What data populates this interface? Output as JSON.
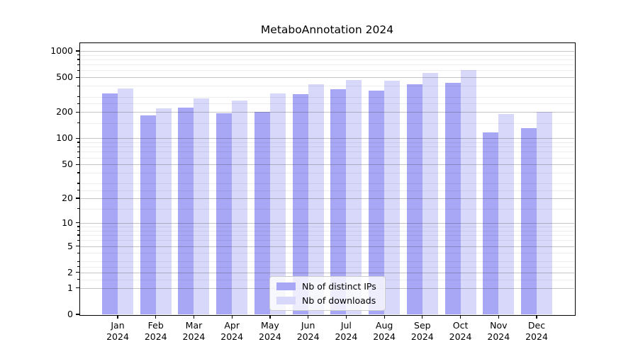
{
  "title": "MetaboAnnotation 2024",
  "colors": {
    "distinct_ips": "#a7a7f5",
    "downloads": "#d8d8fa",
    "grid_major": "#c0c0c0",
    "grid_minor": "#eaeaea",
    "axis": "#000000"
  },
  "legend": {
    "items": [
      {
        "label": "Nb of distinct IPs",
        "color": "#a7a7f5"
      },
      {
        "label": "Nb of downloads",
        "color": "#d8d8fa"
      }
    ],
    "position": "lower center (inside plot)"
  },
  "chart_data": {
    "type": "bar",
    "title": "MetaboAnnotation 2024",
    "categories": [
      "Jan 2024",
      "Feb 2024",
      "Mar 2024",
      "Apr 2024",
      "May 2024",
      "Jun 2024",
      "Jul 2024",
      "Aug 2024",
      "Sep 2024",
      "Oct 2024",
      "Nov 2024",
      "Dec 2024"
    ],
    "series": [
      {
        "name": "Nb of distinct IPs",
        "color": "#a7a7f5",
        "values": [
          330,
          185,
          225,
          195,
          200,
          320,
          365,
          355,
          415,
          435,
          117,
          132
        ]
      },
      {
        "name": "Nb of downloads",
        "color": "#d8d8fa",
        "values": [
          375,
          220,
          285,
          270,
          330,
          420,
          465,
          460,
          560,
          600,
          190,
          200
        ]
      }
    ],
    "xlabel": "",
    "ylabel": "",
    "yscale": "log10(1+v)",
    "ylim": [
      0,
      1230
    ],
    "y_ticks": [
      0,
      1,
      2,
      5,
      10,
      20,
      50,
      100,
      200,
      500,
      1000
    ],
    "y_minor_ticks": [
      1.5,
      2.5,
      3,
      4,
      6,
      7,
      8,
      9,
      15,
      25,
      30,
      40,
      60,
      70,
      80,
      90,
      150,
      250,
      300,
      400,
      600,
      700,
      800,
      900
    ],
    "grid": true,
    "grid_over_bars": true,
    "legend_position": "lower center"
  }
}
